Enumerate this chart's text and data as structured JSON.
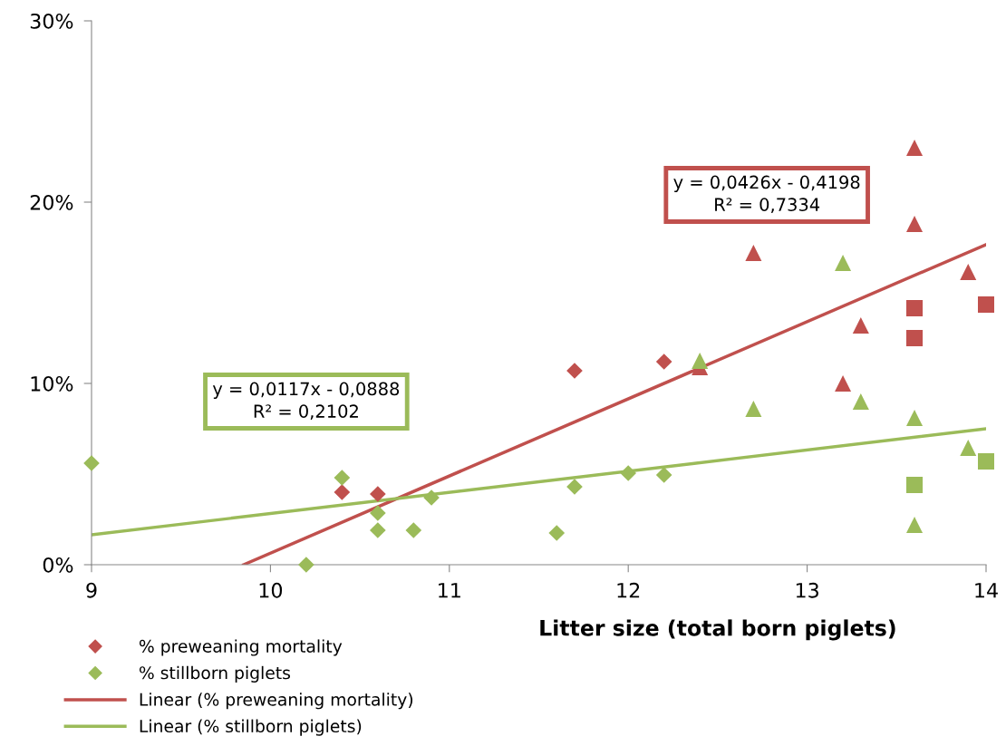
{
  "chart_data": {
    "type": "scatter",
    "xlabel": "Litter size (total born piglets)",
    "xlim": [
      9,
      14
    ],
    "xticks": [
      9,
      10,
      11,
      12,
      13,
      14
    ],
    "ylim": [
      0,
      30
    ],
    "yticks": [
      {
        "value": 0,
        "label": "0%"
      },
      {
        "value": 10,
        "label": "10%"
      },
      {
        "value": 20,
        "label": "20%"
      },
      {
        "value": 30,
        "label": "30%"
      }
    ],
    "grid": false,
    "legend": "bottom",
    "series": [
      {
        "name": "% preweaning mortality",
        "color": "#c0504d",
        "marker": "diamond",
        "x": [
          10.4,
          10.6,
          11.7,
          12.2
        ],
        "values": [
          4.0,
          3.9,
          10.7,
          11.2
        ]
      },
      {
        "name": "% stillborn piglets",
        "color": "#9bbb59",
        "marker": "diamond",
        "x": [
          9,
          10.2,
          10.4,
          10.6,
          10.6,
          10.8,
          10.9,
          11.6,
          11.7,
          12.0,
          12.2
        ],
        "values": [
          5.6,
          0.0,
          4.8,
          2.85,
          1.9,
          1.9,
          3.7,
          1.75,
          4.3,
          5.05,
          4.95
        ]
      },
      {
        "type": "line",
        "name": "Linear (% preweaning mortality)",
        "color": "#c0504d",
        "marker": "none",
        "line_style": "solid",
        "x": [
          9.85,
          14
        ],
        "values": [
          0.0,
          17.66
        ]
      },
      {
        "type": "line",
        "name": "Linear (% stillborn piglets)",
        "color": "#9bbb59",
        "marker": "none",
        "line_style": "solid",
        "x": [
          9,
          14
        ],
        "values": [
          1.65,
          7.5
        ]
      },
      {
        "color": "#c0504d",
        "marker": "triangle",
        "x": [
          12.4,
          12.7,
          13.2,
          13.3,
          13.6,
          13.6,
          13.9
        ],
        "values": [
          10.9,
          17.2,
          10.0,
          13.2,
          23.0,
          18.8,
          16.15
        ]
      },
      {
        "color": "#c0504d",
        "marker": "square",
        "x": [
          13.6,
          13.6,
          14.0
        ],
        "values": [
          14.15,
          12.5,
          14.35
        ]
      },
      {
        "color": "#9bbb59",
        "marker": "triangle",
        "x": [
          12.4,
          12.7,
          13.2,
          13.3,
          13.6,
          13.6,
          13.9
        ],
        "values": [
          11.25,
          8.6,
          16.65,
          9.0,
          8.1,
          2.2,
          6.45
        ]
      },
      {
        "color": "#9bbb59",
        "marker": "square",
        "x": [
          13.6,
          14.0
        ],
        "values": [
          4.4,
          5.7
        ]
      }
    ],
    "annotations": [
      "y = 0,0426x - 0,4198\nR² = 0,7334",
      "y = 0,0117x - 0,0888\nR² = 0,2102"
    ]
  }
}
